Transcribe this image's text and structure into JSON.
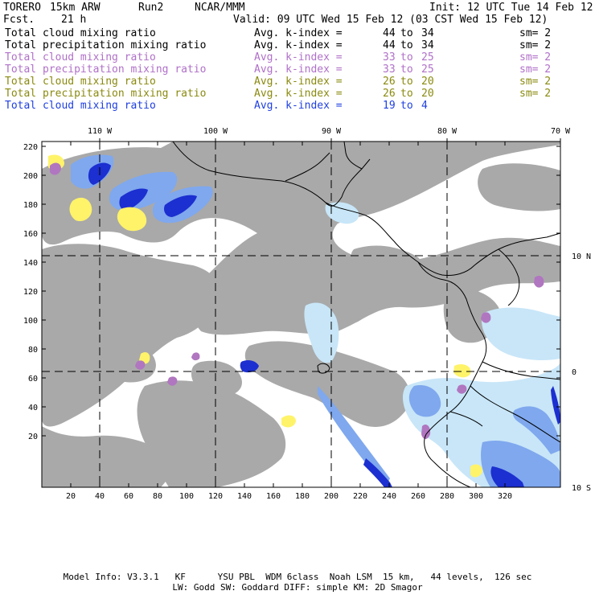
{
  "header": {
    "model": "TORERO",
    "resolution": "15km ARW",
    "run": "Run2",
    "org": "NCAR/MMM",
    "init": "Init: 12 UTC Tue 14 Feb 12",
    "fcst_label": "Fcst.",
    "fcst_value": "21 h",
    "valid": "Valid: 09 UTC Wed 15 Feb 12 (03 CST Wed 15 Feb 12)"
  },
  "legend": [
    {
      "field": "Total cloud mixing ratio",
      "index_label": "Avg. k-index =",
      "from": "44",
      "to_label": "to",
      "to": "34",
      "sm": "sm= 2",
      "color": "#000000"
    },
    {
      "field": "Total precipitation mixing ratio",
      "index_label": "Avg. k-index =",
      "from": "44",
      "to_label": "to",
      "to": "34",
      "sm": "sm= 2",
      "color": "#000000"
    },
    {
      "field": "Total cloud mixing ratio",
      "index_label": "Avg. k-index =",
      "from": "33",
      "to_label": "to",
      "to": "25",
      "sm": "sm= 2",
      "color": "#b070c8"
    },
    {
      "field": "Total precipitation mixing ratio",
      "index_label": "Avg. k-index =",
      "from": "33",
      "to_label": "to",
      "to": "25",
      "sm": "sm= 2",
      "color": "#b070c8"
    },
    {
      "field": "Total cloud mixing ratio",
      "index_label": "Avg. k-index =",
      "from": "26",
      "to_label": "to",
      "to": "20",
      "sm": "sm= 2",
      "color": "#8a8a10"
    },
    {
      "field": "Total precipitation mixing ratio",
      "index_label": "Avg. k-index =",
      "from": "26",
      "to_label": "to",
      "to": "20",
      "sm": "sm= 2",
      "color": "#8a8a10"
    },
    {
      "field": "Total cloud mixing ratio",
      "index_label": "Avg. k-index =",
      "from": "19",
      "to_label": "to",
      "to": "4",
      "sm": "",
      "color": "#2040e0"
    }
  ],
  "map": {
    "lon_labels": [
      "110 W",
      "100 W",
      "90 W",
      "80 W",
      "70 W"
    ],
    "lat_labels": [
      "10 N",
      "0",
      "10 S"
    ],
    "x_ticks": [
      "20",
      "40",
      "60",
      "80",
      "100",
      "120",
      "140",
      "160",
      "180",
      "200",
      "220",
      "240",
      "260",
      "280",
      "300",
      "320"
    ],
    "y_ticks": [
      "220",
      "200",
      "180",
      "160",
      "140",
      "120",
      "100",
      "80",
      "60",
      "40",
      "20"
    ],
    "colors": {
      "cloud_gray": "#a9a9a9",
      "light_blue": "#c8e6f8",
      "mid_blue": "#7fa8ee",
      "deep_blue": "#1c2fd0",
      "yellow": "#fff36a",
      "purple": "#b076c0",
      "coast": "#000000"
    }
  },
  "footer": {
    "line1": "Model Info: V3.3.1   KF      YSU PBL  WDM 6class  Noah LSM  15 km,   44 levels,  126 sec",
    "line2": "LW: Godd SW: Goddard DIFF: simple KM: 2D Smagor"
  }
}
